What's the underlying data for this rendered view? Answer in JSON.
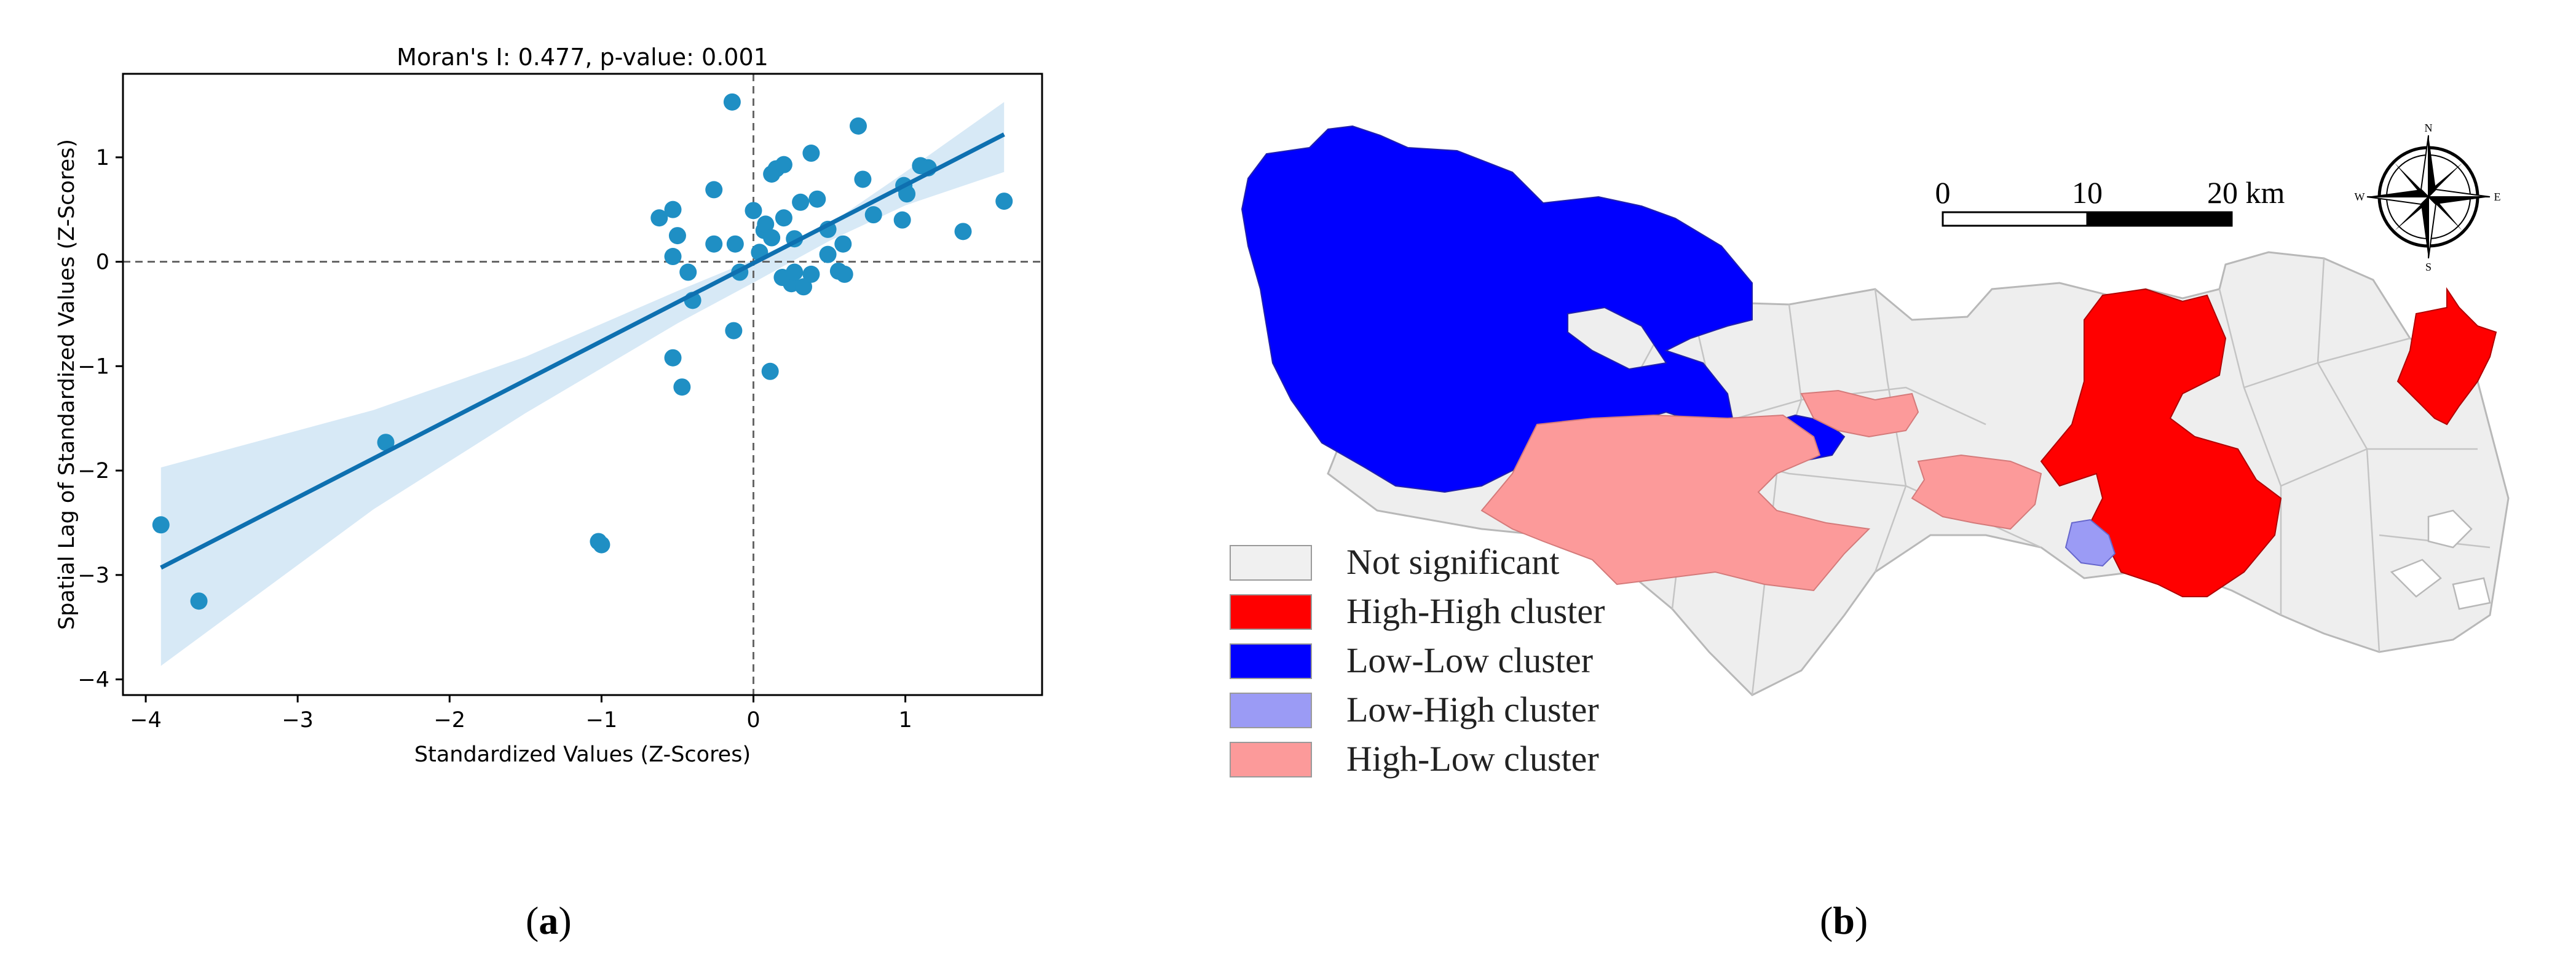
{
  "panel_a": {
    "label": "a",
    "chart_data": {
      "type": "scatter",
      "title": "Moran's I: 0.477, p-value: 0.001",
      "xlabel": "Standardized Values (Z-Scores)",
      "ylabel": "Spatial Lag of Standardized Values (Z-Scores)",
      "xlim": [
        -4.15,
        1.9
      ],
      "ylim": [
        -4.15,
        1.8
      ],
      "xticks": [
        -4,
        -3,
        -2,
        -1,
        0,
        1
      ],
      "yticks": [
        -4,
        -3,
        -2,
        -1,
        0,
        1
      ],
      "grid": false,
      "reference_lines": {
        "x": 0,
        "y": 0,
        "style": "dashed"
      },
      "points": [
        [
          -3.9,
          -2.52
        ],
        [
          -3.65,
          -3.25
        ],
        [
          -2.42,
          -1.73
        ],
        [
          -1.02,
          -2.68
        ],
        [
          -1.0,
          -2.71
        ],
        [
          -0.14,
          1.53
        ],
        [
          -0.62,
          0.42
        ],
        [
          -0.53,
          0.5
        ],
        [
          -0.5,
          0.25
        ],
        [
          -0.53,
          0.05
        ],
        [
          -0.43,
          -0.1
        ],
        [
          -0.4,
          -0.37
        ],
        [
          -0.26,
          0.69
        ],
        [
          -0.26,
          0.17
        ],
        [
          -0.12,
          0.17
        ],
        [
          -0.09,
          -0.1
        ],
        [
          -0.13,
          -0.66
        ],
        [
          -0.53,
          -0.92
        ],
        [
          -0.47,
          -1.2
        ],
        [
          0.11,
          -1.05
        ],
        [
          0.0,
          0.49
        ],
        [
          0.04,
          0.09
        ],
        [
          0.07,
          0.3
        ],
        [
          0.08,
          0.36
        ],
        [
          0.12,
          0.23
        ],
        [
          0.12,
          0.84
        ],
        [
          0.15,
          0.89
        ],
        [
          0.2,
          0.93
        ],
        [
          0.2,
          0.42
        ],
        [
          0.19,
          -0.15
        ],
        [
          0.25,
          -0.21
        ],
        [
          0.27,
          -0.1
        ],
        [
          0.27,
          0.22
        ],
        [
          0.31,
          0.57
        ],
        [
          0.33,
          -0.24
        ],
        [
          0.38,
          1.04
        ],
        [
          0.38,
          -0.12
        ],
        [
          0.42,
          0.6
        ],
        [
          0.49,
          0.31
        ],
        [
          0.49,
          0.07
        ],
        [
          0.56,
          -0.09
        ],
        [
          0.6,
          -0.12
        ],
        [
          0.59,
          0.17
        ],
        [
          0.69,
          1.3
        ],
        [
          0.72,
          0.79
        ],
        [
          0.79,
          0.45
        ],
        [
          0.98,
          0.4
        ],
        [
          0.99,
          0.73
        ],
        [
          1.01,
          0.65
        ],
        [
          1.1,
          0.92
        ],
        [
          1.15,
          0.9
        ],
        [
          1.38,
          0.29
        ],
        [
          1.65,
          0.58
        ]
      ],
      "regression_line": {
        "x": [
          -3.9,
          1.65
        ],
        "y": [
          -2.93,
          1.22
        ]
      },
      "confidence_band": {
        "x": [
          -3.9,
          -2.5,
          -1.5,
          -0.5,
          0.0,
          0.5,
          1.0,
          1.65
        ],
        "lower": [
          -3.87,
          -2.37,
          -1.45,
          -0.59,
          -0.2,
          0.2,
          0.54,
          0.86
        ],
        "upper": [
          -1.97,
          -1.42,
          -0.91,
          -0.28,
          0.02,
          0.36,
          0.86,
          1.53
        ]
      },
      "colors": {
        "points": "#1f8fc4",
        "line": "#0e70b0",
        "band": "#d3e7f5"
      }
    }
  },
  "panel_b": {
    "label": "b",
    "scale_bar": {
      "labels": [
        "0",
        "10",
        "20 km"
      ]
    },
    "compass": {
      "north": "N",
      "south": "S",
      "east": "E",
      "west": "W"
    },
    "legend": [
      {
        "label": "Not significant",
        "color": "#f0f0f0"
      },
      {
        "label": "High-High cluster",
        "color": "#ff0000"
      },
      {
        "label": "Low-Low cluster",
        "color": "#0000ff"
      },
      {
        "label": "Low-High cluster",
        "color": "#9b9bf5"
      },
      {
        "label": "High-Low cluster",
        "color": "#fc9a9a"
      }
    ]
  }
}
